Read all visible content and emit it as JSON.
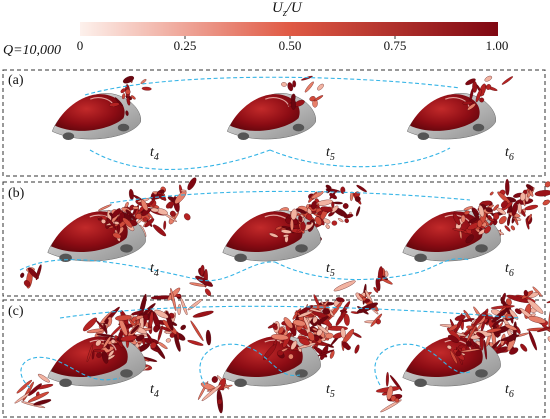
{
  "labels": {
    "q_criterion": "Q=10,000",
    "colorbar_title_main": "U",
    "colorbar_title_main_sub": "z",
    "colorbar_title_sep": "/",
    "colorbar_title_denom": "U"
  },
  "colorbar": {
    "ticks": [
      "0",
      "0.25",
      "0.50",
      "0.75",
      "1.00"
    ],
    "tick_values": [
      0,
      0.25,
      0.5,
      0.75,
      1.0
    ],
    "color_low": "#fdf1ec",
    "color_mid": "#e05a45",
    "color_high": "#7f0712"
  },
  "panels": [
    {
      "label": "(a)",
      "times": [
        {
          "t": "t",
          "sub": "4"
        },
        {
          "t": "t",
          "sub": "5"
        },
        {
          "t": "t",
          "sub": "6"
        }
      ]
    },
    {
      "label": "(b)",
      "times": [
        {
          "t": "t",
          "sub": "4"
        },
        {
          "t": "t",
          "sub": "5"
        },
        {
          "t": "t",
          "sub": "6"
        }
      ]
    },
    {
      "label": "(c)",
      "times": [
        {
          "t": "t",
          "sub": "4"
        },
        {
          "t": "t",
          "sub": "5"
        },
        {
          "t": "t",
          "sub": "6"
        }
      ]
    }
  ],
  "colors": {
    "frame": "#333333",
    "trajectory": "#35b4e6",
    "car_body": "#b8b8b8"
  }
}
